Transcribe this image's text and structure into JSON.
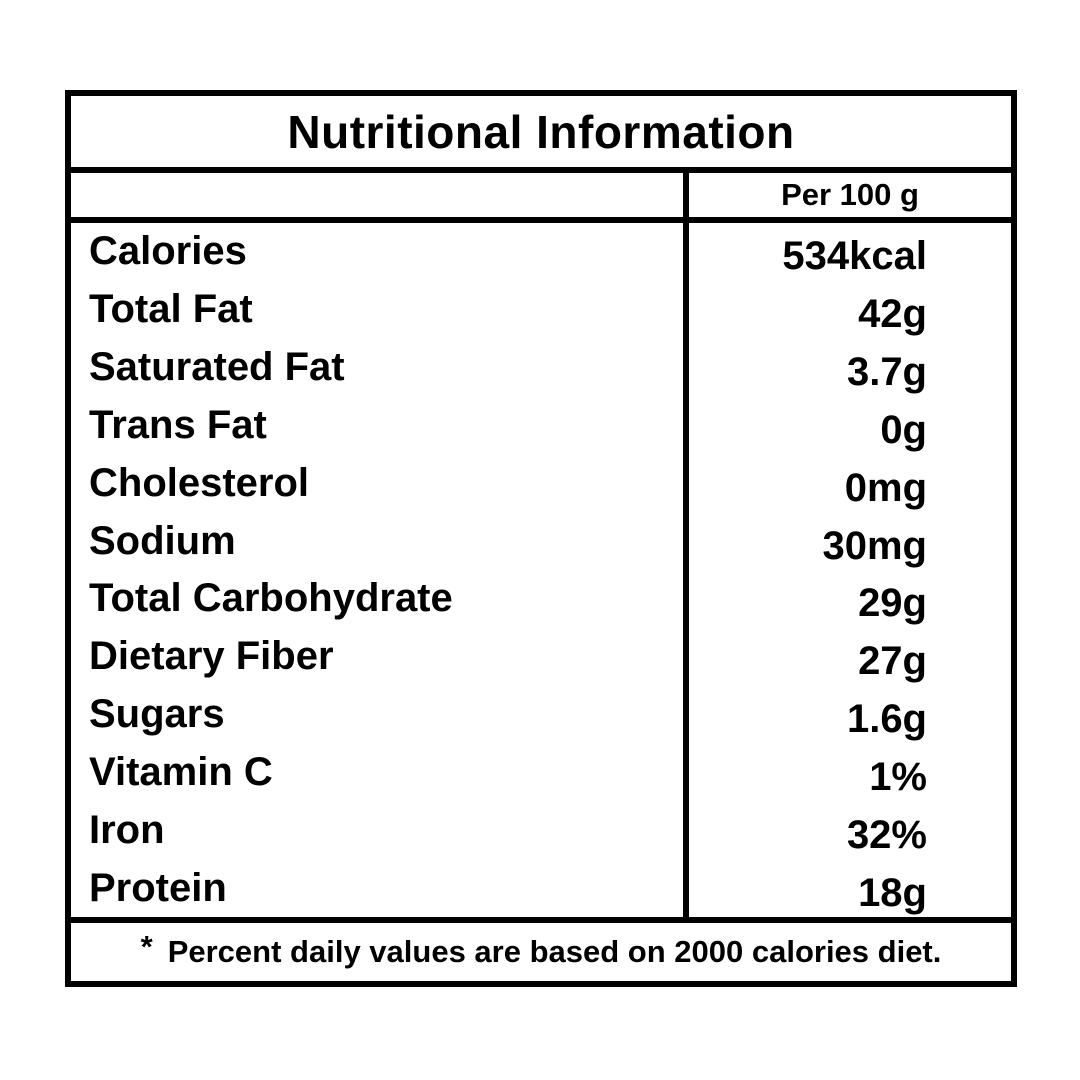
{
  "table": {
    "title": "Nutritional Information",
    "column_header": "Per 100 g",
    "rows": [
      {
        "label": "Calories",
        "value": "534kcal"
      },
      {
        "label": "Total Fat",
        "value": "42g"
      },
      {
        "label": "Saturated Fat",
        "value": "3.7g"
      },
      {
        "label": "Trans Fat",
        "value": "0g"
      },
      {
        "label": "Cholesterol",
        "value": "0mg"
      },
      {
        "label": "Sodium",
        "value": "30mg"
      },
      {
        "label": "Total Carbohydrate",
        "value": "29g"
      },
      {
        "label": "Dietary Fiber",
        "value": "27g"
      },
      {
        "label": "Sugars",
        "value": "1.6g"
      },
      {
        "label": "Vitamin C",
        "value": "1%"
      },
      {
        "label": "Iron",
        "value": "32%"
      },
      {
        "label": "Protein",
        "value": "18g"
      }
    ],
    "footnote_marker": "*",
    "footnote": "Percent daily values are based on 2000 calories diet."
  },
  "colors": {
    "text": "#000000",
    "border": "#000000",
    "background": "#ffffff"
  }
}
